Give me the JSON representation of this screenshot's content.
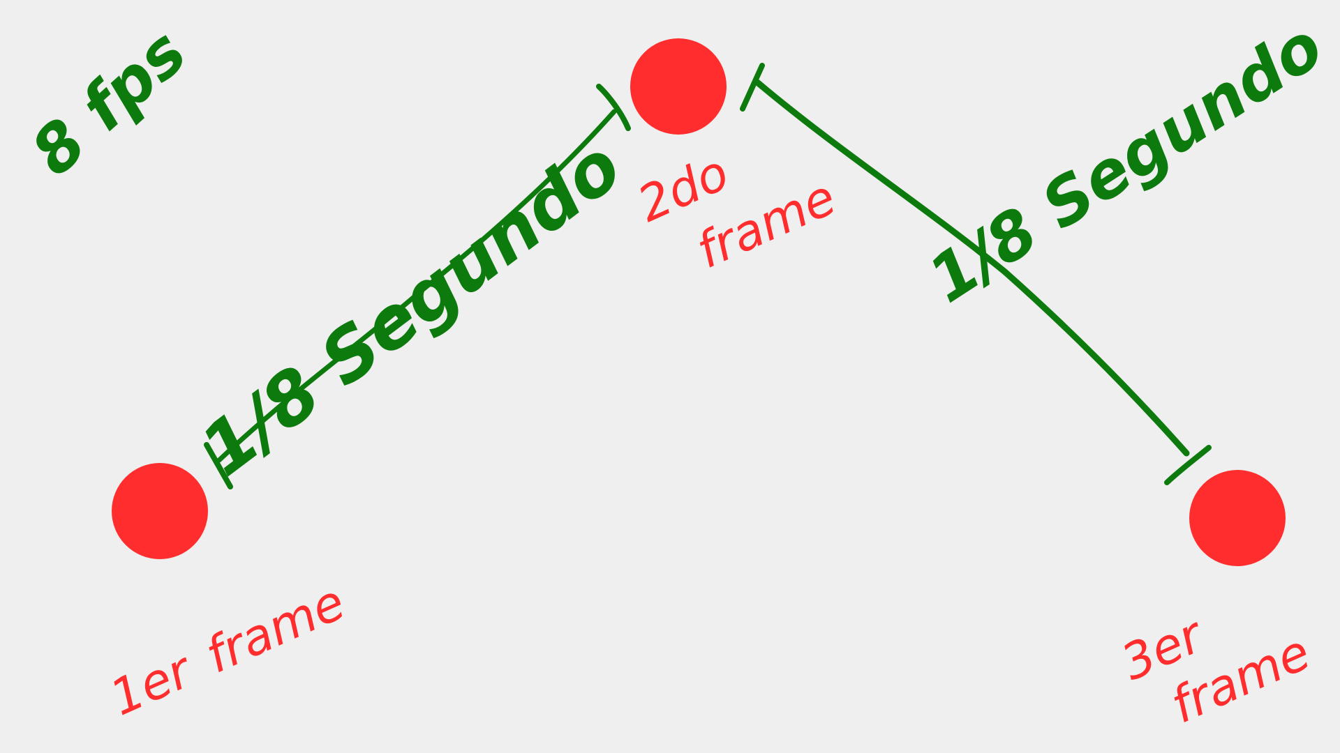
{
  "colors": {
    "background": "#efefef",
    "frame_dot": "#ff2d2d",
    "interval_ink": "#0c7a0c",
    "frame_label_ink": "#ff2d2d"
  },
  "rate_label": "8 fps",
  "frames": [
    {
      "label_line1": "1er",
      "label_line2": "frame"
    },
    {
      "label_line1": "2do",
      "label_line2": "frame"
    },
    {
      "label_line1": "3er",
      "label_line2": "frame"
    }
  ],
  "intervals": [
    {
      "label": "1/8 Segundo"
    },
    {
      "label": "1/8 Segundo"
    }
  ]
}
